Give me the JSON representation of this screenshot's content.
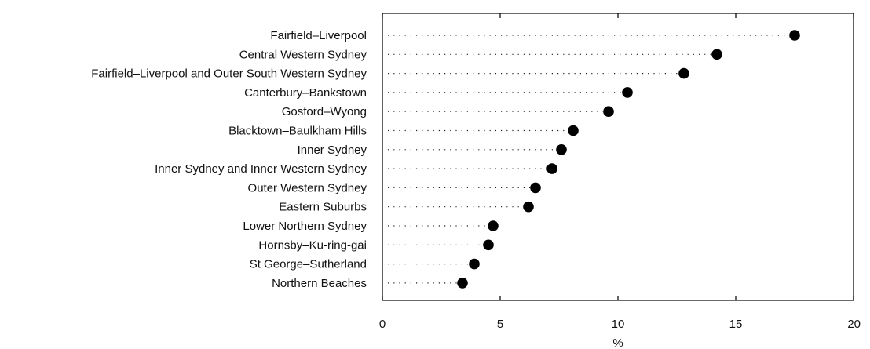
{
  "chart_data": {
    "type": "scatter",
    "subtype": "dot-plot",
    "orientation": "horizontal",
    "categories": [
      "Fairfield–Liverpool",
      "Central Western Sydney",
      "Fairfield–Liverpool and Outer South Western Sydney",
      "Canterbury–Bankstown",
      "Gosford–Wyong",
      "Blacktown–Baulkham Hills",
      "Inner Sydney",
      "Inner Sydney and Inner Western Sydney",
      "Outer Western Sydney",
      "Eastern Suburbs",
      "Lower Northern Sydney",
      "Hornsby–Ku-ring-gai",
      "St George–Sutherland",
      "Northern Beaches"
    ],
    "values": [
      17.5,
      14.2,
      12.8,
      10.4,
      9.6,
      8.1,
      7.6,
      7.2,
      6.5,
      6.2,
      4.7,
      4.5,
      3.9,
      3.4
    ],
    "xlabel": "%",
    "ylabel": "",
    "title": "",
    "xlim": [
      0,
      20
    ],
    "xticks": [
      "0",
      "5",
      "10",
      "15",
      "20"
    ],
    "grid": false,
    "legend": "none",
    "marker_color": "#000000",
    "leader_style": "dotted"
  }
}
